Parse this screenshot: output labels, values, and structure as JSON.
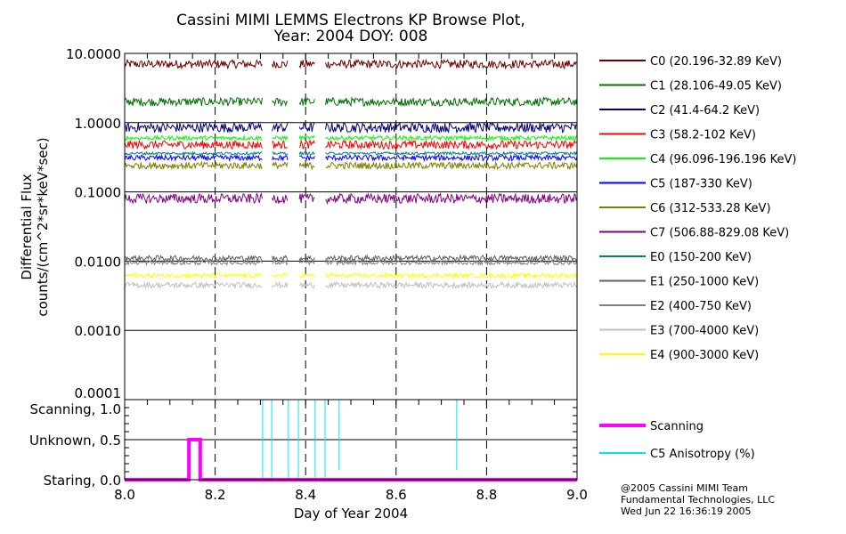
{
  "chart_data": [
    {
      "type": "line",
      "title": "Cassini MIMI LEMMS Electrons KP Browse Plot,",
      "subtitle": "Year: 2004 DOY: 008",
      "xlabel": "Day of Year 2004",
      "ylabel": "Differential Flux",
      "ylabel2": "counts/(cm^2*sr*keV*sec)",
      "yscale": "log",
      "xlim": [
        8.0,
        9.0
      ],
      "ylim": [
        0.0001,
        10
      ],
      "yticks": [
        "10.0000",
        "1.0000",
        "0.1000",
        "0.0100",
        "0.0010",
        "0.0001"
      ],
      "ytick_values": [
        10,
        1,
        0.1,
        0.01,
        0.001,
        0.0001
      ],
      "xticks": [
        "8.0",
        "8.2",
        "8.4",
        "8.6",
        "8.8",
        "9.0"
      ],
      "xtick_values": [
        8.0,
        8.2,
        8.4,
        8.6,
        8.8,
        9.0
      ],
      "data_gaps": [
        [
          8.305,
          8.325
        ],
        [
          8.362,
          8.384
        ],
        [
          8.421,
          8.443
        ]
      ],
      "legend_position": "right",
      "series": [
        {
          "name": "C0 (20.196-32.89 KeV)",
          "color": "#700000",
          "level": 7.0,
          "noise_decades": 0.06
        },
        {
          "name": "C1 (28.106-49.05 KeV)",
          "color": "#007000",
          "level": 2.0,
          "noise_decades": 0.06
        },
        {
          "name": "C2 (41.4-64.2 KeV)",
          "color": "#000070",
          "level": 0.85,
          "noise_decades": 0.07
        },
        {
          "name": "C3 (58.2-102 KeV)",
          "color": "#ff0000",
          "level": 0.48,
          "noise_decades": 0.06
        },
        {
          "name": "C4 (96.096-196.196 KeV)",
          "color": "#00ff00",
          "level": 0.6,
          "noise_decades": 0.03
        },
        {
          "name": "C5 (187-330 KeV)",
          "color": "#0000ff",
          "level": 0.31,
          "noise_decades": 0.04
        },
        {
          "name": "C6 (312-533.28 KeV)",
          "color": "#808000",
          "level": 0.24,
          "noise_decades": 0.05
        },
        {
          "name": "C7 (506.88-829.08 KeV)",
          "color": "#800080",
          "level": 0.08,
          "noise_decades": 0.07
        },
        {
          "name": "E0 (150-200 KeV)",
          "color": "#008080",
          "level": 0.36,
          "noise_decades": 0.02
        },
        {
          "name": "E1 (250-1000 KeV)",
          "color": "#606060",
          "level": 0.011,
          "noise_decades": 0.04
        },
        {
          "name": "E2 (400-750 KeV)",
          "color": "#808080",
          "level": 0.0095,
          "noise_decades": 0.03
        },
        {
          "name": "E3 (700-4000 KeV)",
          "color": "#c0c0c0",
          "level": 0.0045,
          "noise_decades": 0.04
        },
        {
          "name": "E4 (900-3000 KeV)",
          "color": "#ffff00",
          "level": 0.0062,
          "noise_decades": 0.03
        }
      ]
    },
    {
      "type": "line",
      "xlim": [
        8.0,
        9.0
      ],
      "ylim": [
        0.0,
        1.0
      ],
      "yticks": [
        "Scanning, 1.0",
        "Unknown, 0.5",
        "Staring, 0.0"
      ],
      "ytick_values": [
        1.0,
        0.5,
        0.0
      ],
      "legend_position": "right",
      "series": [
        {
          "name": "Scanning",
          "color": "#ff00ff",
          "x": [
            8.0,
            8.142,
            8.142,
            8.167,
            8.167,
            9.0
          ],
          "y": [
            0.0,
            0.0,
            0.5,
            0.5,
            0.0,
            0.0
          ]
        },
        {
          "name": "C5 Anisotropy (%)",
          "color": "#00e8e8",
          "baseline": 1.0,
          "dips": [
            [
              8.305,
              0.0
            ],
            [
              8.325,
              0.0
            ],
            [
              8.362,
              0.0
            ],
            [
              8.384,
              0.0
            ],
            [
              8.421,
              0.0
            ],
            [
              8.443,
              0.0
            ],
            [
              8.474,
              0.12
            ],
            [
              8.734,
              0.12
            ]
          ]
        }
      ]
    }
  ],
  "footer": {
    "line1": "@2005 Cassini MIMI Team",
    "line2": "Fundamental Technologies, LLC",
    "line3": "Wed Jun 22 16:36:19 2005"
  }
}
